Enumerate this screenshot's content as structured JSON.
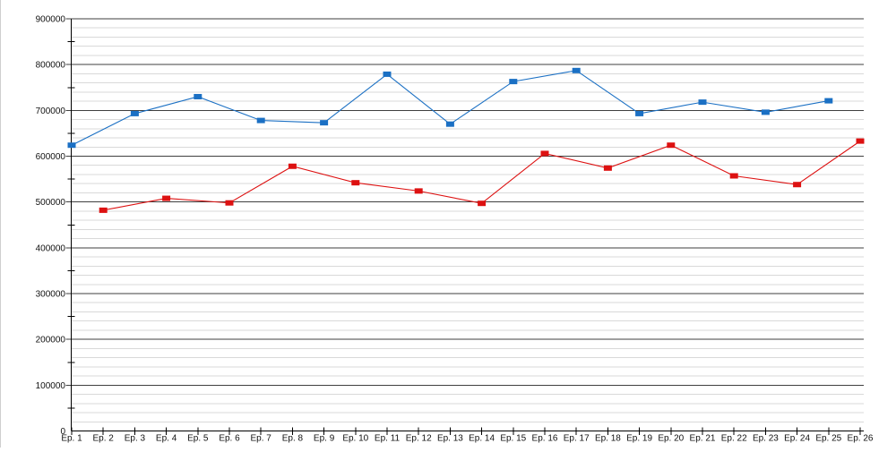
{
  "page": {
    "background_color": "#ffffff",
    "edge_line_color": "#cfcfcf"
  },
  "chart_data": {
    "type": "line",
    "title": "",
    "xlabel": "",
    "ylabel": "",
    "legend": "none",
    "grid": {
      "major_color": "#3f3f3f",
      "minor_color": "#d9d9d9",
      "axis_color": "#000000",
      "minor_lines_every": 20000,
      "major_lines_every": 100000
    },
    "ylim": [
      0,
      900000
    ],
    "y_major_step": 100000,
    "y_minor_step": 20000,
    "y_minor_tick_step": 50000,
    "y_tick_labels": [
      "0",
      "100000",
      "200000",
      "300000",
      "400000",
      "500000",
      "600000",
      "700000",
      "800000",
      "900000"
    ],
    "categories": [
      "Ep. 1",
      "Ep. 2",
      "Ep. 3",
      "Ep. 4",
      "Ep. 5",
      "Ep. 6",
      "Ep. 7",
      "Ep. 8",
      "Ep. 9",
      "Ep. 10",
      "Ep. 11",
      "Ep. 12",
      "Ep. 13",
      "Ep. 14",
      "Ep. 15",
      "Ep. 16",
      "Ep. 17",
      "Ep. 18",
      "Ep. 19",
      "Ep. 20",
      "Ep. 21",
      "Ep. 22",
      "Ep. 23",
      "Ep. 24",
      "Ep. 25",
      "Ep. 26"
    ],
    "series": [
      {
        "name": "blue-series",
        "color": "#1b70c4",
        "marker": "square",
        "values": [
          624000,
          null,
          693000,
          null,
          730000,
          null,
          678000,
          null,
          673000,
          null,
          779000,
          null,
          670000,
          null,
          763000,
          null,
          787000,
          null,
          693000,
          null,
          718000,
          null,
          696000,
          null,
          721000,
          null
        ]
      },
      {
        "name": "red-series",
        "color": "#dd1111",
        "marker": "square",
        "values": [
          null,
          482000,
          null,
          508000,
          null,
          498000,
          null,
          578000,
          null,
          542000,
          null,
          524000,
          null,
          497000,
          null,
          606000,
          null,
          574000,
          null,
          624000,
          null,
          557000,
          null,
          538000,
          null,
          633000
        ]
      }
    ]
  }
}
